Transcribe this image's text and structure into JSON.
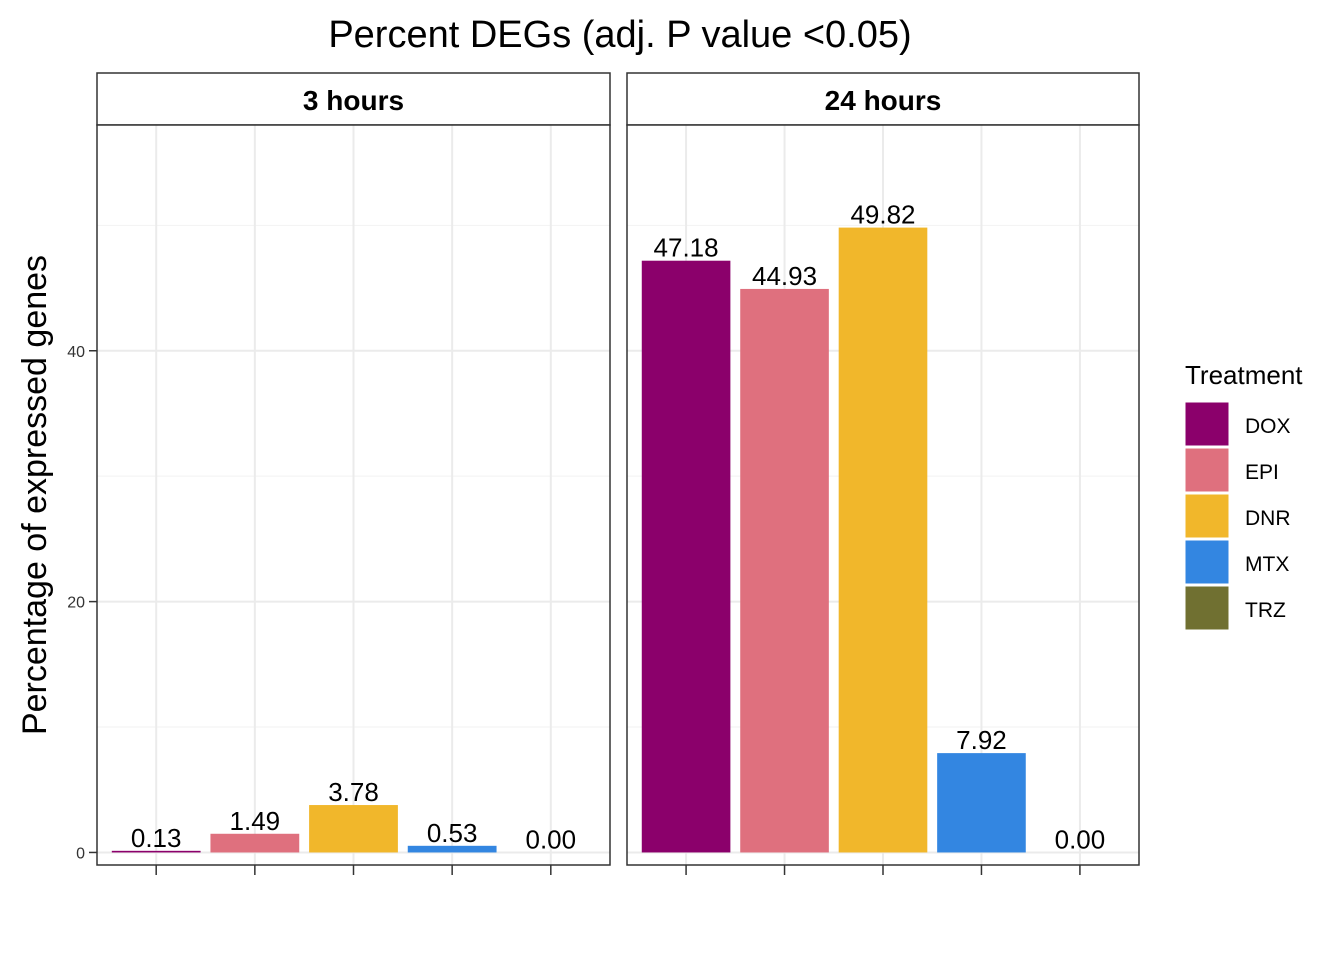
{
  "chart_data": {
    "type": "bar",
    "title": "Percent DEGs (adj. P value <0.05)",
    "ylabel": "Percentage of expressed genes",
    "xlabel": "",
    "ylim": [
      -1,
      58
    ],
    "yticks": [
      0,
      20,
      40
    ],
    "grid": true,
    "legend": {
      "title": "Treatment",
      "position": "right",
      "entries": [
        {
          "name": "DOX",
          "color": "#8B006B"
        },
        {
          "name": "EPI",
          "color": "#DF707E"
        },
        {
          "name": "DNR",
          "color": "#F1B72B"
        },
        {
          "name": "MTX",
          "color": "#3386E1"
        },
        {
          "name": "TRZ",
          "color": "#707031"
        }
      ]
    },
    "categories": [
      "DOX",
      "EPI",
      "DNR",
      "MTX",
      "TRZ"
    ],
    "panels": [
      {
        "name": "3 hours",
        "values": [
          0.13,
          1.49,
          3.78,
          0.53,
          0.0
        ],
        "labels": [
          "0.13",
          "1.49",
          "3.78",
          "0.53",
          "0.00"
        ]
      },
      {
        "name": "24 hours",
        "values": [
          47.18,
          44.93,
          49.82,
          7.92,
          0.0
        ],
        "labels": [
          "47.18",
          "44.93",
          "49.82",
          "7.92",
          "0.00"
        ]
      }
    ]
  }
}
